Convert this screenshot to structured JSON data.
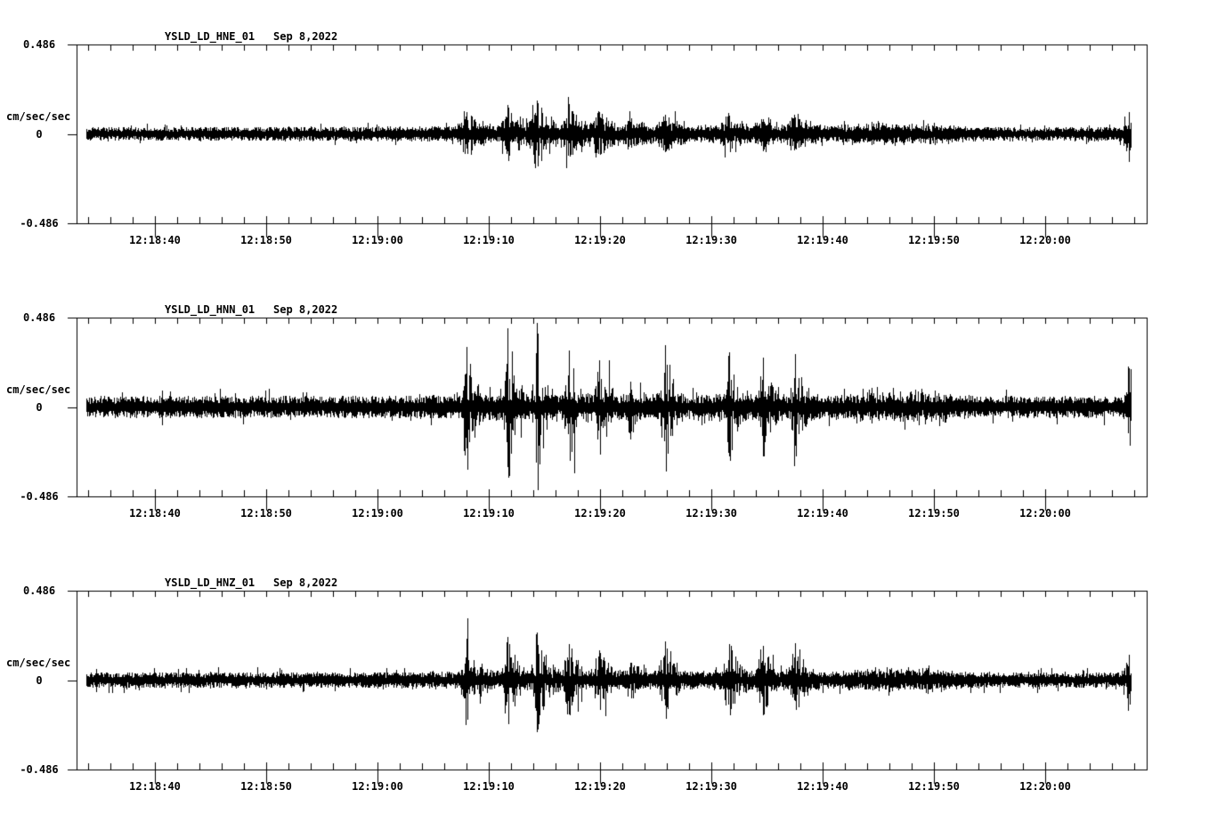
{
  "window": {
    "background": "#ffffff",
    "foreground": "#000000"
  },
  "chart_data": {
    "type": "line",
    "subtype": "seismogram-3-component",
    "station": "YSLD",
    "network": "LD",
    "date_label": "Sep 8,2022",
    "units_label": "cm/sec/sec",
    "y_axis": {
      "top_label": "0.486",
      "zero_label": "0",
      "bottom_label": "-0.486",
      "ylim": [
        -0.486,
        0.486
      ],
      "grid": false
    },
    "x_axis": {
      "tick_labels": [
        "12:18:40",
        "12:18:50",
        "12:19:00",
        "12:19:10",
        "12:19:20",
        "12:19:30",
        "12:19:40",
        "12:19:50",
        "12:20:00"
      ],
      "major_tick_interval_s": 10,
      "minor_tick_interval_s": 2,
      "view_start": "12:18:33",
      "view_end": "12:20:09",
      "trace_start": "12:18:34",
      "trace_end": "12:20:08"
    },
    "panels": [
      {
        "channel_id": "YSLD_LD_HNE_01",
        "noise_amplitude": 0.036,
        "spikiness": 1.35,
        "rise_s": 0.45,
        "decay_s": 1.3,
        "boost": 1.5,
        "seed": 11,
        "bursts": [
          {
            "time": "12:19:08",
            "t": 28.0,
            "amplitude": 0.12
          },
          {
            "time": "12:19:12",
            "t": 31.7,
            "amplitude": 0.165
          },
          {
            "time": "12:19:14",
            "t": 34.3,
            "amplitude": 0.185
          },
          {
            "time": "12:19:17",
            "t": 37.2,
            "amplitude": 0.135
          },
          {
            "time": "12:19:20",
            "t": 39.9,
            "amplitude": 0.12
          },
          {
            "time": "12:19:23",
            "t": 42.7,
            "amplitude": 0.07
          },
          {
            "time": "12:19:26",
            "t": 45.8,
            "amplitude": 0.105
          },
          {
            "time": "12:19:32",
            "t": 51.6,
            "amplitude": 0.105
          },
          {
            "time": "12:19:35",
            "t": 54.6,
            "amplitude": 0.085
          },
          {
            "time": "12:19:38",
            "t": 57.5,
            "amplitude": 0.095
          },
          {
            "time": "12:19:22",
            "t": 42.0,
            "sigma": 12.0,
            "amplitude": 0.018
          },
          {
            "time": "12:19:45",
            "t": 65.0,
            "sigma": 2.5,
            "amplitude": 0.035
          },
          {
            "time": "12:19:49",
            "t": 68.5,
            "sigma": 2.5,
            "amplitude": 0.03
          },
          {
            "time": "12:20:08",
            "t": 87.5,
            "amplitude": 0.09
          }
        ]
      },
      {
        "channel_id": "YSLD_LD_HNN_01",
        "noise_amplitude": 0.056,
        "spikiness": 2.3,
        "rise_s": 0.22,
        "decay_s": 0.75,
        "boost": 1.8,
        "seed": 22,
        "bursts": [
          {
            "time": "12:19:08",
            "t": 28.0,
            "amplitude": 0.36
          },
          {
            "time": "12:19:12",
            "t": 31.7,
            "amplitude": 0.43
          },
          {
            "time": "12:19:14",
            "t": 34.3,
            "amplitude": 0.47
          },
          {
            "time": "12:19:17",
            "t": 37.2,
            "amplitude": 0.31
          },
          {
            "time": "12:19:20",
            "t": 39.9,
            "amplitude": 0.28
          },
          {
            "time": "12:19:23",
            "t": 42.7,
            "amplitude": 0.145
          },
          {
            "time": "12:19:26",
            "t": 45.8,
            "amplitude": 0.34
          },
          {
            "time": "12:19:32",
            "t": 51.6,
            "amplitude": 0.3
          },
          {
            "time": "12:19:35",
            "t": 54.6,
            "amplitude": 0.28
          },
          {
            "time": "12:19:38",
            "t": 57.5,
            "amplitude": 0.29
          },
          {
            "time": "12:19:22",
            "t": 42.0,
            "sigma": 12.0,
            "amplitude": 0.03
          },
          {
            "time": "12:19:45",
            "t": 65.0,
            "sigma": 2.5,
            "amplitude": 0.055
          },
          {
            "time": "12:19:49",
            "t": 68.5,
            "sigma": 2.5,
            "amplitude": 0.05
          },
          {
            "time": "12:20:08",
            "t": 87.5,
            "amplitude": 0.22
          }
        ]
      },
      {
        "channel_id": "YSLD_LD_HNZ_01",
        "noise_amplitude": 0.04,
        "spikiness": 1.8,
        "rise_s": 0.3,
        "decay_s": 0.9,
        "boost": 1.7,
        "seed": 33,
        "bursts": [
          {
            "time": "12:19:08",
            "t": 28.0,
            "amplitude": 0.23
          },
          {
            "time": "12:19:12",
            "t": 31.7,
            "amplitude": 0.25
          },
          {
            "time": "12:19:14",
            "t": 34.3,
            "amplitude": 0.28
          },
          {
            "time": "12:19:17",
            "t": 37.2,
            "amplitude": 0.2
          },
          {
            "time": "12:19:20",
            "t": 39.9,
            "amplitude": 0.17
          },
          {
            "time": "12:19:23",
            "t": 42.7,
            "amplitude": 0.1
          },
          {
            "time": "12:19:26",
            "t": 45.8,
            "amplitude": 0.22
          },
          {
            "time": "12:19:32",
            "t": 51.6,
            "amplitude": 0.2
          },
          {
            "time": "12:19:35",
            "t": 54.6,
            "amplitude": 0.19
          },
          {
            "time": "12:19:38",
            "t": 57.5,
            "amplitude": 0.18
          },
          {
            "time": "12:19:22",
            "t": 42.0,
            "sigma": 12.0,
            "amplitude": 0.02
          },
          {
            "time": "12:19:45",
            "t": 65.0,
            "sigma": 2.5,
            "amplitude": 0.04
          },
          {
            "time": "12:19:49",
            "t": 68.5,
            "sigma": 2.5,
            "amplitude": 0.035
          },
          {
            "time": "12:20:08",
            "t": 87.5,
            "amplitude": 0.145
          }
        ]
      }
    ]
  }
}
